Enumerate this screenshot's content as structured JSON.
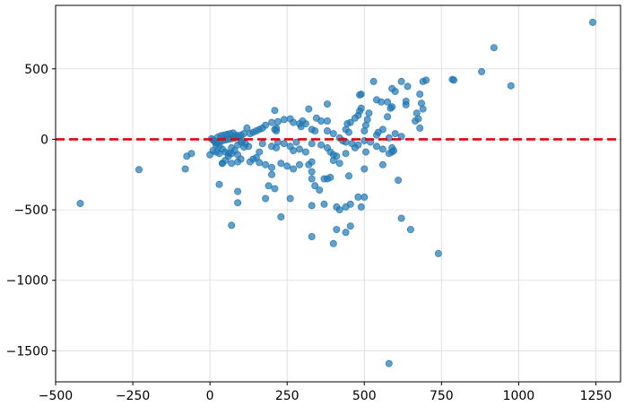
{
  "chart_data": {
    "type": "scatter",
    "title": "",
    "xlabel": "",
    "ylabel": "",
    "xlim": [
      -500,
      1330
    ],
    "ylim": [
      -1720,
      950
    ],
    "grid": true,
    "x_ticks": [
      -500,
      -250,
      0,
      250,
      500,
      750,
      1000,
      1250
    ],
    "x_tick_labels": [
      "−500",
      "−250",
      "0",
      "250",
      "500",
      "750",
      "1000",
      "1250"
    ],
    "y_ticks": [
      500,
      0,
      -500,
      -1000,
      -1500
    ],
    "y_tick_labels": [
      "500",
      "0",
      "−500",
      "−1000",
      "−1500"
    ],
    "reference_line": {
      "y": 0,
      "style": "dashed",
      "color": "#e8000b"
    },
    "point_color": "#1f77b4",
    "series": [
      {
        "points": [
          [
            1240,
            830
          ],
          [
            920,
            650
          ],
          [
            880,
            480
          ],
          [
            975,
            380
          ],
          [
            785,
            425
          ],
          [
            790,
            420
          ],
          [
            700,
            420
          ],
          [
            690,
            410
          ],
          [
            640,
            375
          ],
          [
            620,
            410
          ],
          [
            680,
            320
          ],
          [
            685,
            255
          ],
          [
            690,
            215
          ],
          [
            670,
            185
          ],
          [
            675,
            145
          ],
          [
            665,
            130
          ],
          [
            680,
            80
          ],
          [
            635,
            270
          ],
          [
            635,
            245
          ],
          [
            600,
            340
          ],
          [
            590,
            360
          ],
          [
            590,
            230
          ],
          [
            585,
            220
          ],
          [
            575,
            265
          ],
          [
            575,
            160
          ],
          [
            540,
            280
          ],
          [
            530,
            410
          ],
          [
            555,
            265
          ],
          [
            490,
            320
          ],
          [
            485,
            315
          ],
          [
            490,
            220
          ],
          [
            485,
            200
          ],
          [
            515,
            185
          ],
          [
            480,
            170
          ],
          [
            470,
            150
          ],
          [
            455,
            120
          ],
          [
            445,
            110
          ],
          [
            440,
            70
          ],
          [
            450,
            50
          ],
          [
            510,
            140
          ],
          [
            505,
            100
          ],
          [
            500,
            60
          ],
          [
            545,
            50
          ],
          [
            560,
            70
          ],
          [
            540,
            30
          ],
          [
            600,
            40
          ],
          [
            620,
            20
          ],
          [
            580,
            10
          ],
          [
            380,
            250
          ],
          [
            320,
            215
          ],
          [
            210,
            205
          ],
          [
            345,
            150
          ],
          [
            360,
            130
          ],
          [
            380,
            130
          ],
          [
            300,
            130
          ],
          [
            260,
            145
          ],
          [
            240,
            140
          ],
          [
            220,
            125
          ],
          [
            200,
            120
          ],
          [
            180,
            100
          ],
          [
            170,
            80
          ],
          [
            160,
            70
          ],
          [
            150,
            60
          ],
          [
            140,
            50
          ],
          [
            120,
            80
          ],
          [
            130,
            40
          ],
          [
            110,
            40
          ],
          [
            100,
            30
          ],
          [
            90,
            20
          ],
          [
            80,
            10
          ],
          [
            70,
            5
          ],
          [
            60,
            0
          ],
          [
            50,
            -5
          ],
          [
            40,
            -10
          ],
          [
            30,
            -20
          ],
          [
            20,
            -25
          ],
          [
            15,
            -15
          ],
          [
            10,
            -5
          ],
          [
            5,
            5
          ],
          [
            25,
            15
          ],
          [
            35,
            25
          ],
          [
            45,
            30
          ],
          [
            55,
            35
          ],
          [
            65,
            40
          ],
          [
            75,
            45
          ],
          [
            85,
            30
          ],
          [
            95,
            15
          ],
          [
            105,
            -10
          ],
          [
            115,
            -30
          ],
          [
            125,
            -50
          ],
          [
            70,
            -60
          ],
          [
            80,
            -80
          ],
          [
            60,
            -100
          ],
          [
            50,
            -90
          ],
          [
            40,
            -70
          ],
          [
            30,
            -50
          ],
          [
            20,
            -40
          ],
          [
            90,
            -40
          ],
          [
            100,
            -20
          ],
          [
            110,
            -55
          ],
          [
            200,
            -50
          ],
          [
            215,
            -60
          ],
          [
            215,
            80
          ],
          [
            215,
            60
          ],
          [
            210,
            70
          ],
          [
            270,
            120
          ],
          [
            290,
            110
          ],
          [
            295,
            90
          ],
          [
            310,
            110
          ],
          [
            330,
            70
          ],
          [
            340,
            60
          ],
          [
            380,
            60
          ],
          [
            400,
            40
          ],
          [
            420,
            10
          ],
          [
            430,
            -10
          ],
          [
            440,
            -20
          ],
          [
            460,
            -30
          ],
          [
            480,
            -40
          ],
          [
            500,
            -10
          ],
          [
            520,
            -20
          ],
          [
            540,
            -50
          ],
          [
            560,
            -70
          ],
          [
            590,
            -60
          ],
          [
            595,
            -80
          ],
          [
            580,
            -100
          ],
          [
            590,
            -90
          ],
          [
            560,
            -180
          ],
          [
            500,
            -210
          ],
          [
            505,
            -90
          ],
          [
            470,
            -60
          ],
          [
            440,
            -100
          ],
          [
            400,
            -110
          ],
          [
            390,
            -90
          ],
          [
            380,
            -60
          ],
          [
            360,
            -40
          ],
          [
            330,
            -30
          ],
          [
            310,
            -90
          ],
          [
            290,
            -70
          ],
          [
            270,
            -80
          ],
          [
            280,
            -20
          ],
          [
            260,
            -50
          ],
          [
            240,
            -30
          ],
          [
            220,
            -20
          ],
          [
            170,
            -30
          ],
          [
            160,
            -90
          ],
          [
            150,
            -130
          ],
          [
            140,
            -140
          ],
          [
            130,
            -160
          ],
          [
            100,
            -140
          ],
          [
            90,
            -110
          ],
          [
            70,
            -100
          ],
          [
            60,
            -120
          ],
          [
            50,
            -150
          ],
          [
            40,
            -170
          ],
          [
            30,
            -100
          ],
          [
            20,
            -90
          ],
          [
            10,
            -80
          ],
          [
            0,
            -110
          ],
          [
            -60,
            -100
          ],
          [
            -75,
            -120
          ],
          [
            -80,
            -210
          ],
          [
            -230,
            -215
          ],
          [
            -420,
            -455
          ],
          [
            40,
            -170
          ],
          [
            70,
            -170
          ],
          [
            90,
            -160
          ],
          [
            160,
            -165
          ],
          [
            180,
            -180
          ],
          [
            200,
            -200
          ],
          [
            230,
            -170
          ],
          [
            250,
            -190
          ],
          [
            270,
            -210
          ],
          [
            290,
            -180
          ],
          [
            320,
            -180
          ],
          [
            330,
            -160
          ],
          [
            400,
            -150
          ],
          [
            410,
            -120
          ],
          [
            420,
            -170
          ],
          [
            330,
            -230
          ],
          [
            330,
            -280
          ],
          [
            340,
            -330
          ],
          [
            355,
            -360
          ],
          [
            370,
            -280
          ],
          [
            380,
            -280
          ],
          [
            390,
            -270
          ],
          [
            450,
            -260
          ],
          [
            455,
            -460
          ],
          [
            440,
            -480
          ],
          [
            410,
            -480
          ],
          [
            420,
            -500
          ],
          [
            490,
            -480
          ],
          [
            500,
            -410
          ],
          [
            480,
            -410
          ],
          [
            370,
            -460
          ],
          [
            330,
            -470
          ],
          [
            260,
            -420
          ],
          [
            230,
            -550
          ],
          [
            190,
            -330
          ],
          [
            200,
            -250
          ],
          [
            210,
            -350
          ],
          [
            180,
            -420
          ],
          [
            90,
            -370
          ],
          [
            90,
            -450
          ],
          [
            30,
            -320
          ],
          [
            70,
            -610
          ],
          [
            410,
            -640
          ],
          [
            440,
            -660
          ],
          [
            455,
            -615
          ],
          [
            400,
            -740
          ],
          [
            330,
            -690
          ],
          [
            620,
            -560
          ],
          [
            650,
            -640
          ],
          [
            740,
            -810
          ],
          [
            610,
            -290
          ],
          [
            580,
            -1590
          ]
        ]
      }
    ]
  }
}
